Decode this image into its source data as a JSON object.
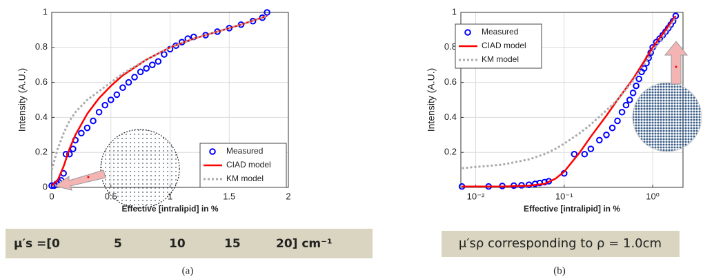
{
  "chart_data": [
    {
      "type": "line",
      "caption": "(a)",
      "xlabel": "Effective [intralipid] in %",
      "ylabel": "Intensity (A.U.)",
      "xlim": [
        0,
        2
      ],
      "xticks": [
        0,
        0.5,
        1,
        1.5,
        2
      ],
      "ylim": [
        0,
        1
      ],
      "yticks": [
        0,
        0.2,
        0.4,
        0.6,
        0.8,
        1
      ],
      "grid": true,
      "legend": "lower right",
      "banner": [
        "μ′s =[0",
        "5",
        "10",
        "15",
        "20] cm⁻¹"
      ],
      "series": [
        {
          "name": "Measured",
          "color": "#0000ff",
          "marker": "circle",
          "x": [
            0,
            0.02,
            0.04,
            0.06,
            0.08,
            0.1,
            0.12,
            0.15,
            0.18,
            0.2,
            0.25,
            0.3,
            0.35,
            0.4,
            0.45,
            0.5,
            0.55,
            0.6,
            0.65,
            0.7,
            0.75,
            0.8,
            0.85,
            0.9,
            0.95,
            1.0,
            1.05,
            1.1,
            1.15,
            1.2,
            1.3,
            1.4,
            1.5,
            1.6,
            1.7,
            1.78,
            1.82
          ],
          "values": [
            0.01,
            0.01,
            0.02,
            0.03,
            0.04,
            0.08,
            0.19,
            0.19,
            0.22,
            0.27,
            0.31,
            0.34,
            0.38,
            0.43,
            0.47,
            0.5,
            0.53,
            0.57,
            0.6,
            0.63,
            0.66,
            0.68,
            0.7,
            0.72,
            0.76,
            0.79,
            0.81,
            0.83,
            0.85,
            0.86,
            0.87,
            0.89,
            0.91,
            0.93,
            0.95,
            0.97,
            1.0
          ]
        },
        {
          "name": "CIAD model",
          "color": "#ff0000",
          "dash": "solid",
          "x": [
            0,
            0.05,
            0.1,
            0.15,
            0.2,
            0.3,
            0.4,
            0.5,
            0.6,
            0.8,
            1.0,
            1.2,
            1.4,
            1.6,
            1.82
          ],
          "values": [
            0.01,
            0.04,
            0.12,
            0.22,
            0.3,
            0.42,
            0.51,
            0.58,
            0.64,
            0.73,
            0.8,
            0.85,
            0.89,
            0.93,
            0.98
          ]
        },
        {
          "name": "KM model",
          "color": "#aaaaaa",
          "dash": "dotted",
          "x": [
            0,
            0.05,
            0.1,
            0.15,
            0.2,
            0.3,
            0.4,
            0.5,
            0.6,
            0.8,
            1.0,
            1.2,
            1.4,
            1.6,
            1.82
          ],
          "values": [
            0.1,
            0.22,
            0.31,
            0.38,
            0.43,
            0.5,
            0.55,
            0.6,
            0.65,
            0.73,
            0.8,
            0.85,
            0.89,
            0.93,
            0.98
          ]
        }
      ]
    },
    {
      "type": "line",
      "caption": "(b)",
      "xlabel": "Effective [intralipid] in %",
      "ylabel": "Intensity (A.U.)",
      "xscale": "log",
      "xlim": [
        0.0068,
        2.2
      ],
      "xticks": [
        {
          "value": 0.01,
          "label": "10⁻²"
        },
        {
          "value": 0.1,
          "label": "10⁻¹"
        },
        {
          "value": 1,
          "label": "10⁰"
        }
      ],
      "ylim": [
        0,
        1
      ],
      "yticks": [
        0.2,
        0.4,
        0.6,
        0.8,
        1
      ],
      "grid": true,
      "legend": "upper left",
      "banner": [
        "μ′sρ corresponding to ρ = 1.0cm"
      ],
      "series": [
        {
          "name": "Measured",
          "color": "#0000ff",
          "marker": "circle",
          "x": [
            0.007,
            0.014,
            0.02,
            0.027,
            0.033,
            0.04,
            0.047,
            0.053,
            0.06,
            0.067,
            0.1,
            0.13,
            0.17,
            0.2,
            0.25,
            0.3,
            0.35,
            0.4,
            0.45,
            0.5,
            0.55,
            0.6,
            0.65,
            0.7,
            0.75,
            0.8,
            0.85,
            0.9,
            0.95,
            1.0,
            1.1,
            1.2,
            1.3,
            1.4,
            1.5,
            1.6,
            1.7,
            1.82
          ],
          "values": [
            0.005,
            0.005,
            0.008,
            0.01,
            0.012,
            0.015,
            0.02,
            0.025,
            0.03,
            0.035,
            0.08,
            0.19,
            0.19,
            0.22,
            0.27,
            0.3,
            0.34,
            0.38,
            0.43,
            0.47,
            0.5,
            0.54,
            0.58,
            0.62,
            0.66,
            0.68,
            0.71,
            0.74,
            0.77,
            0.8,
            0.83,
            0.85,
            0.87,
            0.89,
            0.91,
            0.93,
            0.95,
            0.98
          ]
        },
        {
          "name": "CIAD model",
          "color": "#ff0000",
          "dash": "solid",
          "x": [
            0.007,
            0.02,
            0.04,
            0.06,
            0.08,
            0.1,
            0.15,
            0.2,
            0.3,
            0.4,
            0.6,
            0.8,
            1.0,
            1.4,
            1.82
          ],
          "values": [
            0.005,
            0.005,
            0.01,
            0.02,
            0.05,
            0.09,
            0.2,
            0.29,
            0.41,
            0.5,
            0.62,
            0.72,
            0.8,
            0.9,
            0.98
          ]
        },
        {
          "name": "KM model",
          "color": "#aaaaaa",
          "dash": "dotted",
          "x": [
            0.007,
            0.02,
            0.04,
            0.06,
            0.08,
            0.1,
            0.15,
            0.2,
            0.3,
            0.4,
            0.6,
            0.8,
            1.0,
            1.4,
            1.82
          ],
          "values": [
            0.11,
            0.13,
            0.16,
            0.19,
            0.22,
            0.25,
            0.31,
            0.36,
            0.44,
            0.5,
            0.61,
            0.7,
            0.78,
            0.88,
            0.97
          ]
        }
      ]
    }
  ]
}
